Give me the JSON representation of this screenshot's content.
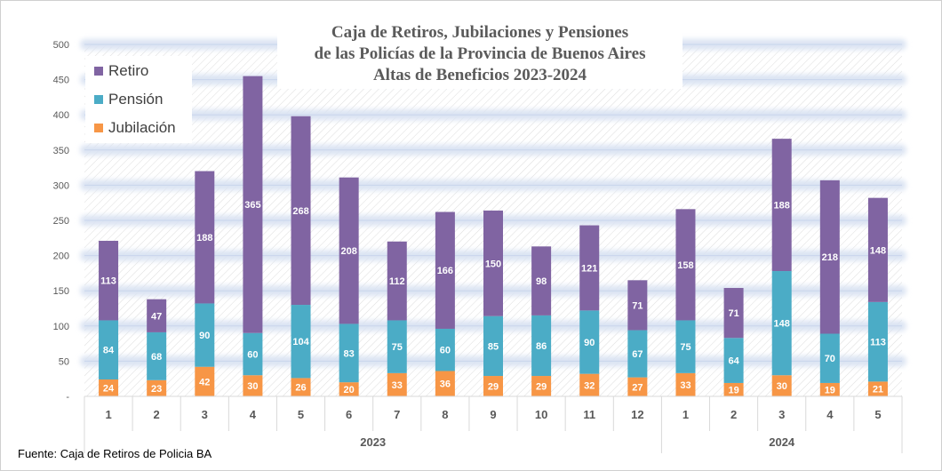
{
  "colors": {
    "retiro": "#8064a2",
    "pension": "#4bacc6",
    "jubilacion": "#f79646",
    "axis_text": "#595959",
    "band": "#dbe4f3"
  },
  "chart_data": {
    "type": "bar",
    "stacked": true,
    "title_lines": [
      "Caja de Retiros, Jubilaciones y Pensiones",
      "de las Policías de la Provincia de Buenos Aires",
      "Altas de Beneficios 2023-2024"
    ],
    "categories": [
      "1",
      "2",
      "3",
      "4",
      "5",
      "6",
      "7",
      "8",
      "9",
      "10",
      "11",
      "12",
      "1",
      "2",
      "3",
      "4",
      "5"
    ],
    "groups": [
      {
        "label": "2023",
        "count": 12
      },
      {
        "label": "2024",
        "count": 5
      }
    ],
    "series": [
      {
        "name": "Jubilación",
        "key": "jubilacion",
        "values": [
          24,
          23,
          42,
          30,
          26,
          20,
          33,
          36,
          29,
          29,
          32,
          27,
          33,
          19,
          30,
          19,
          21
        ]
      },
      {
        "name": "Pensión",
        "key": "pension",
        "values": [
          84,
          68,
          90,
          60,
          104,
          83,
          75,
          60,
          85,
          86,
          90,
          67,
          75,
          64,
          148,
          70,
          113
        ]
      },
      {
        "name": "Retiro",
        "key": "retiro",
        "values": [
          113,
          47,
          188,
          365,
          268,
          208,
          112,
          166,
          150,
          98,
          121,
          71,
          158,
          71,
          188,
          218,
          148
        ]
      }
    ],
    "legend_order": [
      "Retiro",
      "Pensión",
      "Jubilación"
    ],
    "legend_position": "top-left",
    "ylim": [
      0,
      500
    ],
    "yticks": [
      "-",
      "50",
      "100",
      "150",
      "200",
      "250",
      "300",
      "350",
      "400",
      "450",
      "500"
    ],
    "grid": true
  },
  "source": "Fuente: Caja de Retiros de Policia BA"
}
